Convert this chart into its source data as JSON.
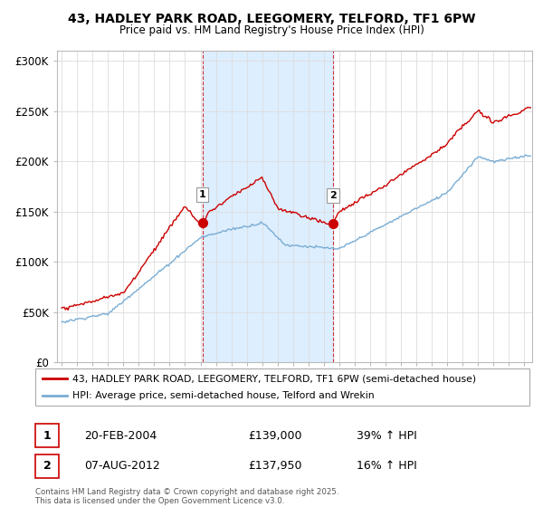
{
  "title_line1": "43, HADLEY PARK ROAD, LEEGOMERY, TELFORD, TF1 6PW",
  "title_line2": "Price paid vs. HM Land Registry's House Price Index (HPI)",
  "legend_label1": "43, HADLEY PARK ROAD, LEEGOMERY, TELFORD, TF1 6PW (semi-detached house)",
  "legend_label2": "HPI: Average price, semi-detached house, Telford and Wrekin",
  "footnote": "Contains HM Land Registry data © Crown copyright and database right 2025.\nThis data is licensed under the Open Government Licence v3.0.",
  "transaction1_label": "1",
  "transaction1_date": "20-FEB-2004",
  "transaction1_price": "£139,000",
  "transaction1_hpi": "39% ↑ HPI",
  "transaction2_label": "2",
  "transaction2_date": "07-AUG-2012",
  "transaction2_price": "£137,950",
  "transaction2_hpi": "16% ↑ HPI",
  "red_color": "#cc0000",
  "blue_color": "#7aadd4",
  "shading_color": "#ddeeff",
  "background_color": "#ffffff",
  "grid_color": "#dddddd",
  "ylim": [
    0,
    310000
  ],
  "yticks": [
    0,
    50000,
    100000,
    150000,
    200000,
    250000,
    300000
  ],
  "xlim_start": 1994.7,
  "xlim_end": 2025.5,
  "marker1_x": 2004.13,
  "marker1_y": 139000,
  "marker2_x": 2012.6,
  "marker2_y": 137950,
  "shade_x1": 2004.13,
  "shade_x2": 2012.6
}
